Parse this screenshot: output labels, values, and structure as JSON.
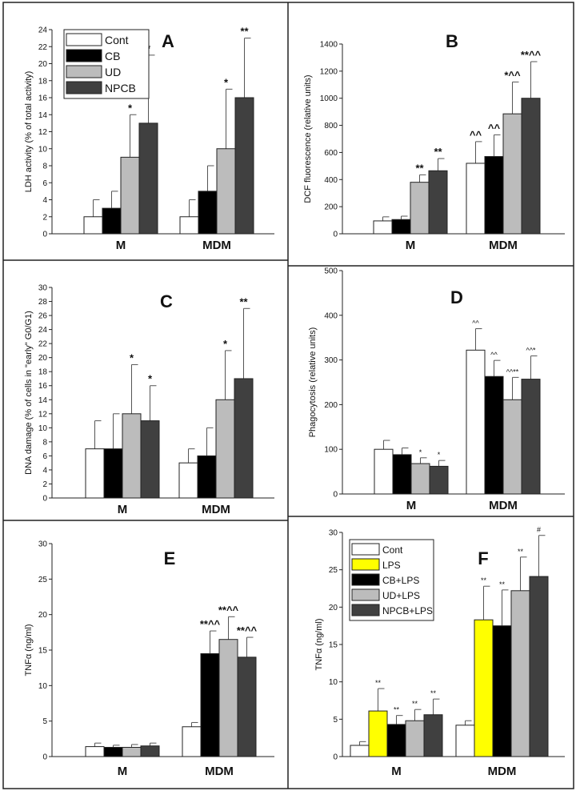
{
  "chart_data": [
    {
      "type": "bar",
      "panel": "A",
      "ylabel": "LDH activity (% of total activity)",
      "ylim": [
        0,
        24
      ],
      "yticks": [
        0,
        2,
        4,
        6,
        8,
        10,
        12,
        14,
        16,
        18,
        20,
        22,
        24
      ],
      "categories": [
        "M",
        "MDM"
      ],
      "legend": {
        "placement": "top-left",
        "names": [
          "Cont",
          "CB",
          "UD",
          "NPCB"
        ]
      },
      "series": [
        {
          "color": "#ffffff",
          "values": [
            2,
            2
          ],
          "errors": [
            2,
            2
          ],
          "marks": [
            "",
            ""
          ]
        },
        {
          "color": "#000000",
          "values": [
            3,
            5
          ],
          "errors": [
            2,
            3
          ],
          "marks": [
            "",
            ""
          ]
        },
        {
          "color": "#bcbcbc",
          "values": [
            9,
            10
          ],
          "errors": [
            5,
            7
          ],
          "marks": [
            "*",
            "*"
          ]
        },
        {
          "color": "#404040",
          "values": [
            13,
            16
          ],
          "errors": [
            8,
            7
          ],
          "marks": [
            "*",
            "**"
          ]
        }
      ]
    },
    {
      "type": "bar",
      "panel": "B",
      "ylabel": "DCF fluorescence (relative units)",
      "ylim": [
        0,
        1400
      ],
      "yticks": [
        0,
        200,
        400,
        600,
        800,
        1000,
        1200,
        1400
      ],
      "categories": [
        "M",
        "MDM"
      ],
      "series": [
        {
          "color": "#ffffff",
          "values": [
            95,
            520
          ],
          "errors": [
            30,
            160
          ],
          "marks": [
            "",
            "^^"
          ]
        },
        {
          "color": "#000000",
          "values": [
            105,
            570
          ],
          "errors": [
            25,
            160
          ],
          "marks": [
            "",
            "^^"
          ]
        },
        {
          "color": "#bcbcbc",
          "values": [
            380,
            885
          ],
          "errors": [
            55,
            235
          ],
          "marks": [
            "**",
            "*^^"
          ]
        },
        {
          "color": "#404040",
          "values": [
            465,
            1000
          ],
          "errors": [
            90,
            270
          ],
          "marks": [
            "**",
            "**^^"
          ]
        }
      ]
    },
    {
      "type": "bar",
      "panel": "C",
      "ylabel": "DNA damage (% of cells in \"early\" G0/G1)",
      "ylim": [
        0,
        30
      ],
      "yticks": [
        0,
        2,
        4,
        6,
        8,
        10,
        12,
        14,
        16,
        18,
        20,
        22,
        24,
        26,
        28,
        30
      ],
      "categories": [
        "M",
        "MDM"
      ],
      "series": [
        {
          "color": "#ffffff",
          "values": [
            7,
            5
          ],
          "errors": [
            4,
            2
          ],
          "marks": [
            "",
            ""
          ]
        },
        {
          "color": "#000000",
          "values": [
            7,
            6
          ],
          "errors": [
            5,
            4
          ],
          "marks": [
            "",
            ""
          ]
        },
        {
          "color": "#bcbcbc",
          "values": [
            12,
            14
          ],
          "errors": [
            7,
            7
          ],
          "marks": [
            "*",
            "*"
          ]
        },
        {
          "color": "#404040",
          "values": [
            11,
            17
          ],
          "errors": [
            5,
            10
          ],
          "marks": [
            "*",
            "**"
          ]
        }
      ]
    },
    {
      "type": "bar",
      "panel": "D",
      "ylabel": "Phagocytosis (relative units)",
      "ylim": [
        0,
        500
      ],
      "yticks": [
        0,
        100,
        200,
        300,
        400,
        500
      ],
      "categories": [
        "M",
        "MDM"
      ],
      "series": [
        {
          "color": "#ffffff",
          "values": [
            100,
            322
          ],
          "errors": [
            20,
            48
          ],
          "marks": [
            "",
            "^^"
          ]
        },
        {
          "color": "#000000",
          "values": [
            88,
            263
          ],
          "errors": [
            15,
            36
          ],
          "marks": [
            "",
            "^^"
          ]
        },
        {
          "color": "#bcbcbc",
          "values": [
            68,
            211
          ],
          "errors": [
            13,
            50
          ],
          "marks": [
            "*",
            "^^**"
          ]
        },
        {
          "color": "#404040",
          "values": [
            62,
            257
          ],
          "errors": [
            13,
            52
          ],
          "marks": [
            "*",
            "^^*"
          ]
        }
      ]
    },
    {
      "type": "bar",
      "panel": "E",
      "ylabel": "TNFα (ng/ml)",
      "ylim": [
        0,
        30
      ],
      "yticks": [
        0,
        5,
        10,
        15,
        20,
        25,
        30
      ],
      "categories": [
        "M",
        "MDM"
      ],
      "series": [
        {
          "color": "#ffffff",
          "values": [
            1.4,
            4.2
          ],
          "errors": [
            0.5,
            0.6
          ],
          "marks": [
            "",
            ""
          ]
        },
        {
          "color": "#000000",
          "values": [
            1.3,
            14.5
          ],
          "errors": [
            0.3,
            3.2
          ],
          "marks": [
            "",
            "**^^"
          ]
        },
        {
          "color": "#bcbcbc",
          "values": [
            1.3,
            16.5
          ],
          "errors": [
            0.4,
            3.2
          ],
          "marks": [
            "",
            "**^^"
          ]
        },
        {
          "color": "#404040",
          "values": [
            1.5,
            14.0
          ],
          "errors": [
            0.4,
            2.8
          ],
          "marks": [
            "",
            "**^^"
          ]
        }
      ]
    },
    {
      "type": "bar",
      "panel": "F",
      "ylabel": "TNFα (ng/ml)",
      "ylim": [
        0,
        30
      ],
      "yticks": [
        0,
        5,
        10,
        15,
        20,
        25,
        30
      ],
      "categories": [
        "M",
        "MDM"
      ],
      "legend": {
        "placement": "top-left",
        "names": [
          "Cont",
          "LPS",
          "CB+LPS",
          "UD+LPS",
          "NPCB+LPS"
        ]
      },
      "series": [
        {
          "color": "#ffffff",
          "values": [
            1.5,
            4.2
          ],
          "errors": [
            0.5,
            0.6
          ],
          "marks": [
            "",
            ""
          ]
        },
        {
          "color": "#ffff00",
          "values": [
            6.1,
            18.3
          ],
          "errors": [
            3.0,
            4.5
          ],
          "marks": [
            "**",
            "**"
          ]
        },
        {
          "color": "#000000",
          "values": [
            4.3,
            17.5
          ],
          "errors": [
            1.2,
            4.8
          ],
          "marks": [
            "**",
            "**"
          ]
        },
        {
          "color": "#bcbcbc",
          "values": [
            4.8,
            22.2
          ],
          "errors": [
            1.5,
            4.5
          ],
          "marks": [
            "**",
            "**"
          ]
        },
        {
          "color": "#404040",
          "values": [
            5.6,
            24.1
          ],
          "errors": [
            2.1,
            5.5
          ],
          "marks": [
            "**",
            "#"
          ]
        }
      ]
    }
  ]
}
